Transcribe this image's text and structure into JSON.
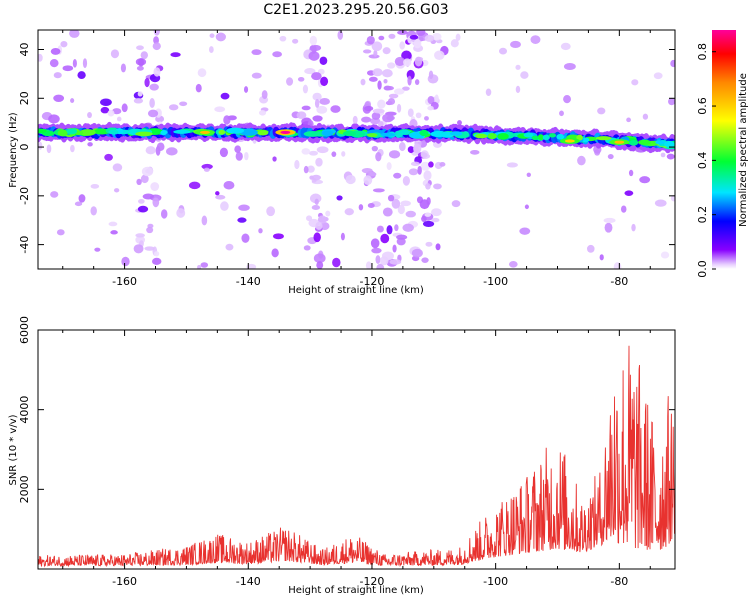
{
  "title": "C2E1.2023.295.20.56.G03",
  "chart_data": [
    {
      "type": "heatmap",
      "xlabel": "Height of straight line (km)",
      "ylabel": "Frequency (Hz)",
      "xlim": [
        -174,
        -71
      ],
      "ylim": [
        -50,
        48
      ],
      "xticks": [
        -160,
        -140,
        -120,
        -100,
        -80
      ],
      "yticks": [
        -40,
        -20,
        0,
        20,
        40
      ],
      "colorbar": {
        "label": "Normalized spectral amplitude",
        "range": [
          0.0,
          0.88
        ],
        "ticks": [
          0.0,
          0.2,
          0.4,
          0.6,
          0.8
        ],
        "colormap": "rainbow (white-violet-blue-cyan-green-yellow-red-magenta)"
      },
      "band_center_hz": [
        {
          "x": -173,
          "y": 6
        },
        {
          "x": -160,
          "y": 6
        },
        {
          "x": -140,
          "y": 6
        },
        {
          "x": -120,
          "y": 5.5
        },
        {
          "x": -105,
          "y": 5.5
        },
        {
          "x": -95,
          "y": 4.5
        },
        {
          "x": -85,
          "y": 3.5
        },
        {
          "x": -78,
          "y": 2.5
        },
        {
          "x": -71,
          "y": 1
        }
      ],
      "peaks": [
        {
          "x": -134,
          "y": 6,
          "amp": 0.88
        },
        {
          "x": -147,
          "y": 6,
          "amp": 0.62
        },
        {
          "x": -80,
          "y": 2,
          "amp": 0.62
        },
        {
          "x": -88,
          "y": 2.5,
          "amp": 0.6
        }
      ],
      "noise_columns_km": [
        -156,
        -129,
        -119,
        -115,
        -111
      ]
    },
    {
      "type": "line",
      "xlabel": "Height of straight line (km)",
      "ylabel": "SNR (10 * v/v)",
      "xlim": [
        -174,
        -71
      ],
      "ylim": [
        0,
        6000
      ],
      "xticks": [
        -160,
        -140,
        -120,
        -100,
        -80
      ],
      "yticks": [
        2000,
        4000,
        6000
      ],
      "series_color": "#e8322f",
      "envelope": [
        {
          "x": -174,
          "lo": 80,
          "hi": 350
        },
        {
          "x": -160,
          "lo": 80,
          "hi": 380
        },
        {
          "x": -150,
          "lo": 100,
          "hi": 600
        },
        {
          "x": -145,
          "lo": 150,
          "hi": 900
        },
        {
          "x": -140,
          "lo": 120,
          "hi": 700
        },
        {
          "x": -134,
          "lo": 200,
          "hi": 1100
        },
        {
          "x": -128,
          "lo": 100,
          "hi": 500
        },
        {
          "x": -123,
          "lo": 150,
          "hi": 900
        },
        {
          "x": -118,
          "lo": 80,
          "hi": 380
        },
        {
          "x": -106,
          "lo": 100,
          "hi": 550
        },
        {
          "x": -100,
          "lo": 300,
          "hi": 1700
        },
        {
          "x": -95,
          "lo": 400,
          "hi": 2400
        },
        {
          "x": -90,
          "lo": 500,
          "hi": 3500
        },
        {
          "x": -86,
          "lo": 400,
          "hi": 1800
        },
        {
          "x": -83,
          "lo": 600,
          "hi": 2600
        },
        {
          "x": -81,
          "lo": 700,
          "hi": 5700
        },
        {
          "x": -78,
          "lo": 500,
          "hi": 6000
        },
        {
          "x": -76,
          "lo": 500,
          "hi": 4800
        },
        {
          "x": -74,
          "lo": 400,
          "hi": 3500
        },
        {
          "x": -72,
          "lo": 600,
          "hi": 4500
        },
        {
          "x": -71,
          "lo": 900,
          "hi": 4000
        }
      ]
    }
  ]
}
